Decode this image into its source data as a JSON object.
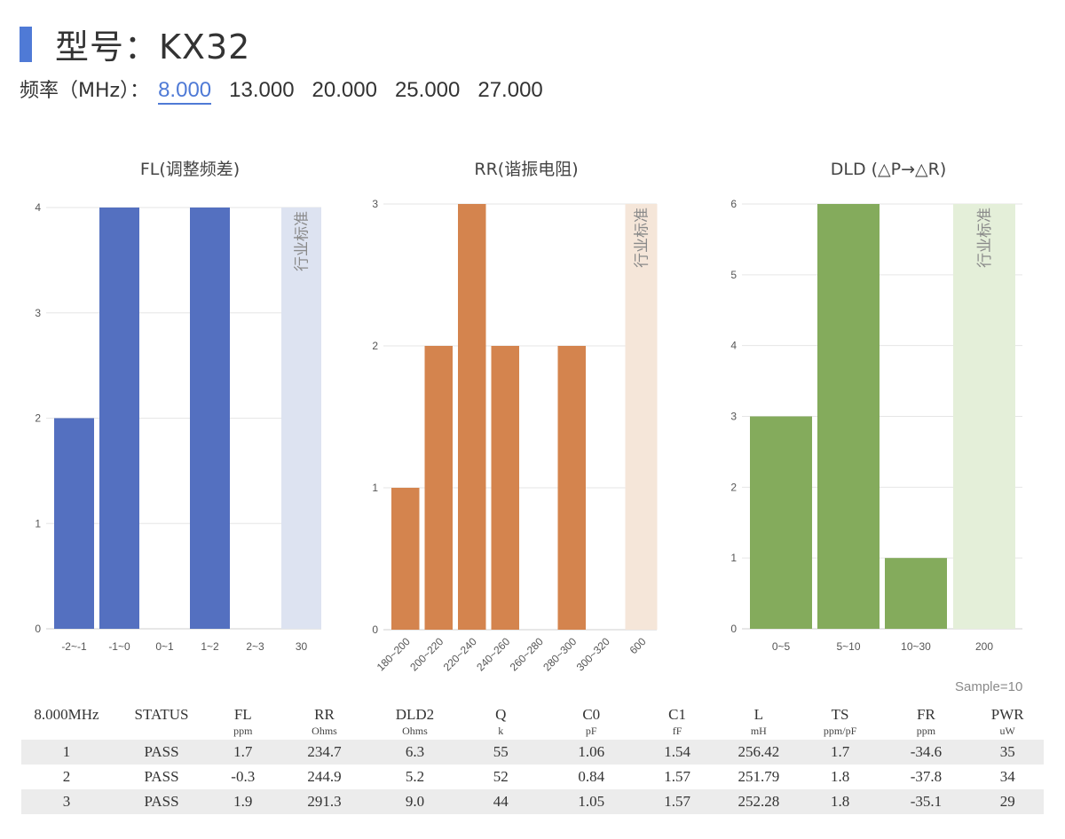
{
  "header": {
    "title": "型号：KX32",
    "freq_label": "频率（MHz）：",
    "freq_options": [
      "8.000",
      "13.000",
      "20.000",
      "25.000",
      "27.000"
    ],
    "freq_selected": "8.000"
  },
  "chart_data": [
    {
      "type": "bar",
      "title": "FL(调整频差)",
      "categories": [
        "-2~-1",
        "-1~0",
        "0~1",
        "1~2",
        "2~3"
      ],
      "values": [
        2,
        4,
        0,
        4,
        0
      ],
      "ylim": [
        0,
        4
      ],
      "yticks": [
        0,
        1,
        2,
        3,
        4
      ],
      "standard_label": "行业标准",
      "standard_value": "30",
      "bar_color": "#5470c0",
      "standard_color": "#dde3f1"
    },
    {
      "type": "bar",
      "title": "RR(谐振电阻)",
      "categories": [
        "180~200",
        "200~220",
        "220~240",
        "240~260",
        "260~280",
        "280~300",
        "300~320"
      ],
      "values": [
        1,
        2,
        3,
        2,
        0,
        2,
        0
      ],
      "ylim": [
        0,
        3
      ],
      "yticks": [
        0,
        1,
        2,
        3
      ],
      "standard_label": "行业标准",
      "standard_value": "600",
      "bar_color": "#d4844e",
      "standard_color": "#f5e6d9"
    },
    {
      "type": "bar",
      "title": "DLD (△P→△R)",
      "categories": [
        "0~5",
        "5~10",
        "10~30"
      ],
      "values": [
        3,
        6,
        1
      ],
      "ylim": [
        0,
        6
      ],
      "yticks": [
        0,
        1,
        2,
        3,
        4,
        5,
        6
      ],
      "standard_label": "行业标准",
      "standard_value": "200",
      "bar_color": "#84ab5c",
      "standard_color": "#e4efd9"
    }
  ],
  "sample_note": "Sample=10",
  "table": {
    "headers": [
      "8.000MHz",
      "STATUS",
      "FL",
      "RR",
      "DLD2",
      "Q",
      "C0",
      "C1",
      "L",
      "TS",
      "FR",
      "PWR"
    ],
    "units": [
      "",
      "",
      "ppm",
      "Ohms",
      "Ohms",
      "k",
      "pF",
      "fF",
      "mH",
      "ppm/pF",
      "ppm",
      "uW"
    ],
    "rows": [
      [
        "1",
        "PASS",
        "1.7",
        "234.7",
        "6.3",
        "55",
        "1.06",
        "1.54",
        "256.42",
        "1.7",
        "-34.6",
        "35"
      ],
      [
        "2",
        "PASS",
        "-0.3",
        "244.9",
        "5.2",
        "52",
        "0.84",
        "1.57",
        "251.79",
        "1.8",
        "-37.8",
        "34"
      ],
      [
        "3",
        "PASS",
        "1.9",
        "291.3",
        "9.0",
        "44",
        "1.05",
        "1.57",
        "252.28",
        "1.8",
        "-35.1",
        "29"
      ]
    ]
  }
}
